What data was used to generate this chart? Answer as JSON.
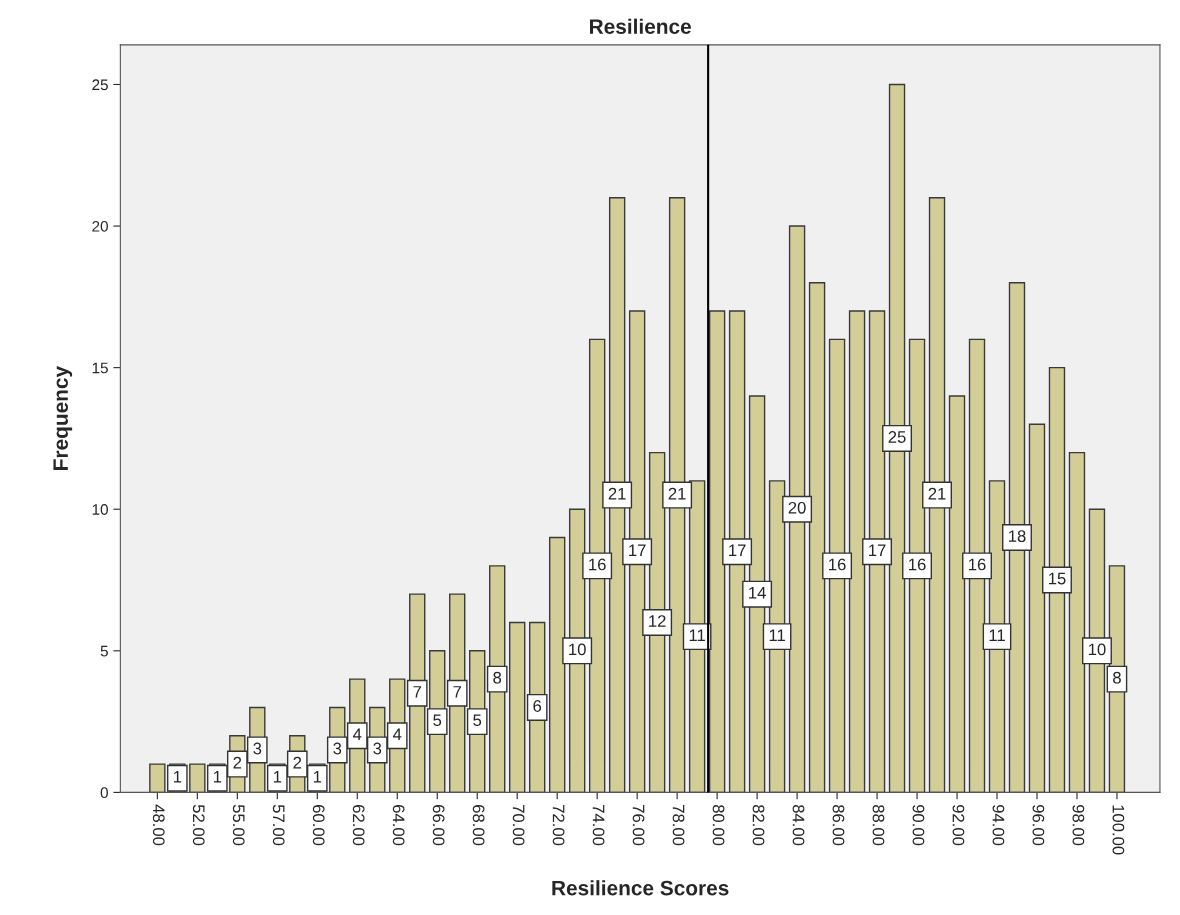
{
  "chart_data": {
    "type": "bar",
    "title": "Resilience",
    "xlabel": "Resilience Scores",
    "ylabel": "Frequency",
    "categories": [
      "48.00",
      null,
      "52.00",
      null,
      "55.00",
      null,
      "57.00",
      null,
      "60.00",
      null,
      "62.00",
      null,
      "64.00",
      null,
      "66.00",
      null,
      "68.00",
      null,
      "70.00",
      null,
      "72.00",
      null,
      "74.00",
      null,
      "76.00",
      null,
      "78.00",
      null,
      "80.00",
      null,
      "82.00",
      null,
      "84.00",
      null,
      "86.00",
      null,
      "88.00",
      null,
      "90.00",
      null,
      "92.00",
      null,
      "94.00",
      null,
      "96.00",
      null,
      "98.00",
      null,
      "100.00"
    ],
    "values": [
      1,
      1,
      1,
      1,
      2,
      3,
      1,
      2,
      1,
      3,
      4,
      3,
      4,
      7,
      5,
      7,
      5,
      8,
      6,
      6,
      9,
      10,
      16,
      21,
      17,
      12,
      21,
      11,
      17,
      17,
      14,
      11,
      20,
      18,
      16,
      17,
      17,
      25,
      16,
      21,
      14,
      16,
      11,
      18,
      13,
      15,
      12,
      10,
      8
    ],
    "value_labels": [
      null,
      "1",
      null,
      "1",
      "2",
      "3",
      "1",
      "2",
      "1",
      "3",
      "4",
      "3",
      "4",
      "7",
      "5",
      "7",
      "5",
      "8",
      null,
      "6",
      null,
      "10",
      "16",
      "21",
      "17",
      "12",
      "21",
      "11",
      null,
      "17",
      "14",
      "11",
      "20",
      null,
      "16",
      null,
      "17",
      "25",
      "16",
      "21",
      null,
      "16",
      "11",
      "18",
      null,
      "15",
      null,
      "10",
      "8"
    ],
    "color": "#d3ce97",
    "ylim": [
      0,
      26.4
    ],
    "yticks": [
      0,
      5,
      10,
      15,
      20,
      25
    ],
    "grid": false
  }
}
